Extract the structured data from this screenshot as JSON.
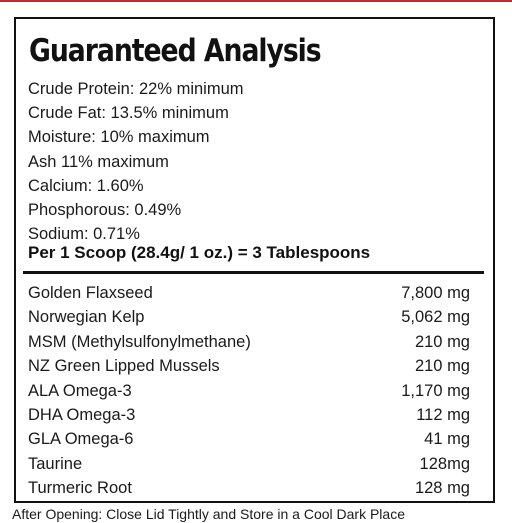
{
  "title": "Guaranteed Analysis",
  "analysis": [
    "Crude Protein: 22% minimum",
    "Crude Fat: 13.5% minimum",
    "Moisture: 10% maximum",
    "Ash 11% maximum",
    "Calcium: 1.60%",
    "Phosphorous: 0.49%",
    "Sodium: 0.71%"
  ],
  "serving": "Per  1 Scoop (28.4g/ 1 oz.) = 3 Tablespoons",
  "ingredients": [
    {
      "name": "Golden Flaxseed",
      "amount": "7,800 mg"
    },
    {
      "name": "Norwegian Kelp",
      "amount": "5,062 mg"
    },
    {
      "name": "MSM (Methylsulfonylmethane)",
      "amount": "210 mg"
    },
    {
      "name": "NZ Green Lipped Mussels",
      "amount": "210 mg"
    },
    {
      "name": "ALA Omega-3",
      "amount": "1,170 mg"
    },
    {
      "name": "DHA Omega-3",
      "amount": "112 mg"
    },
    {
      "name": "GLA Omega-6",
      "amount": "41 mg"
    },
    {
      "name": "Taurine",
      "amount": "128mg"
    },
    {
      "name": "Turmeric Root",
      "amount": "128 mg"
    }
  ],
  "footer_text": "After Opening: Close Lid Tightly and Store in a Cool Dark Place",
  "colors": {
    "top_rule": "#c0282d",
    "border": "#111111",
    "text": "#1a1a1a"
  }
}
